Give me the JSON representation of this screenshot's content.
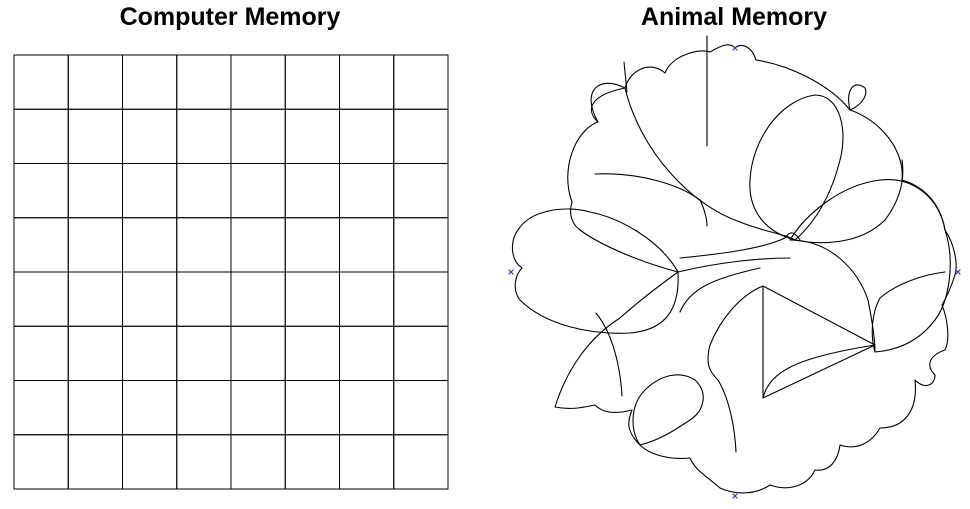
{
  "titles": {
    "computer": "Computer Memory",
    "animal": "Animal Memory"
  },
  "computer_memory": {
    "rows": 8,
    "columns": 8
  },
  "colors": {
    "stroke": "#000000",
    "marker": "#3333cc",
    "background": "#ffffff"
  }
}
